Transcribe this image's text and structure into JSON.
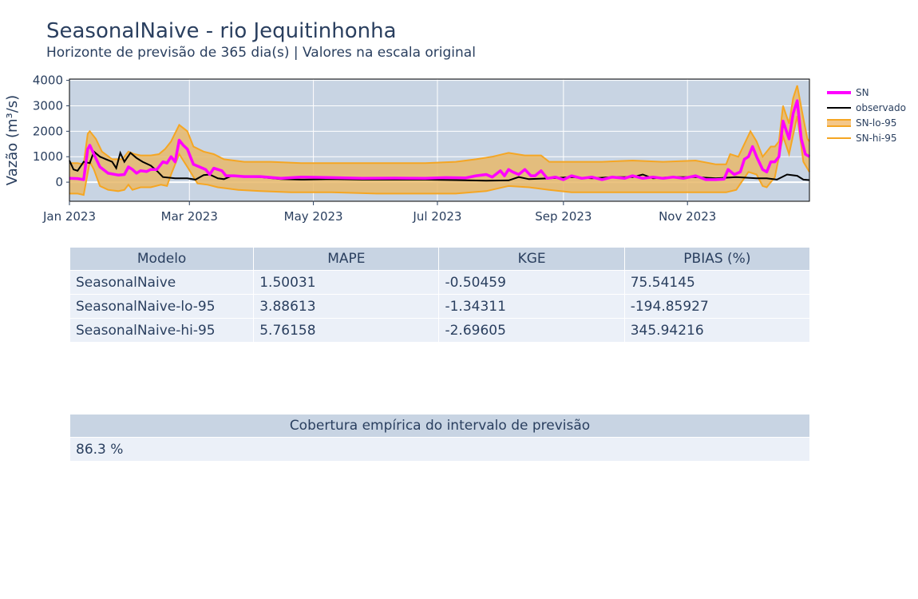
{
  "title": "SeasonalNaive - rio Jequitinhonha",
  "subtitle": "Horizonte de previsão de 365 dia(s) | Valores na escala original",
  "colors": {
    "sn": "#ff00ff",
    "observado": "#000000",
    "band": "#f5a623",
    "band_fill": "#e8b96b",
    "plot_bg": "#c8d4e3"
  },
  "chart_data": {
    "type": "line",
    "title": "SeasonalNaive - rio Jequitinhonha",
    "xlabel": "",
    "ylabel": "Vazão (m³/s)",
    "x_range": [
      "2023-01-01",
      "2023-12-31"
    ],
    "ylim": [
      -750,
      4050
    ],
    "y_ticks": [
      0,
      1000,
      2000,
      3000,
      4000
    ],
    "x_ticks": [
      {
        "date": "2023-01-01",
        "label": "Jan 2023"
      },
      {
        "date": "2023-03-01",
        "label": "Mar 2023"
      },
      {
        "date": "2023-05-01",
        "label": "May 2023"
      },
      {
        "date": "2023-07-01",
        "label": "Jul 2023"
      },
      {
        "date": "2023-09-01",
        "label": "Sep 2023"
      },
      {
        "date": "2023-11-01",
        "label": "Nov 2023"
      }
    ],
    "grid": true,
    "legend_position": "right",
    "series": [
      {
        "name": "SN",
        "points": [
          [
            "2023-01-01",
            150
          ],
          [
            "2023-01-05",
            140
          ],
          [
            "2023-01-08",
            100
          ],
          [
            "2023-01-10",
            1300
          ],
          [
            "2023-01-11",
            1450
          ],
          [
            "2023-01-13",
            1100
          ],
          [
            "2023-01-16",
            600
          ],
          [
            "2023-01-20",
            350
          ],
          [
            "2023-01-25",
            280
          ],
          [
            "2023-01-28",
            300
          ],
          [
            "2023-01-30",
            600
          ],
          [
            "2023-02-01",
            500
          ],
          [
            "2023-02-03",
            350
          ],
          [
            "2023-02-05",
            450
          ],
          [
            "2023-02-08",
            420
          ],
          [
            "2023-02-10",
            500
          ],
          [
            "2023-02-13",
            500
          ],
          [
            "2023-02-16",
            800
          ],
          [
            "2023-02-18",
            750
          ],
          [
            "2023-02-20",
            1000
          ],
          [
            "2023-02-22",
            800
          ],
          [
            "2023-02-24",
            1650
          ],
          [
            "2023-02-26",
            1450
          ],
          [
            "2023-02-28",
            1300
          ],
          [
            "2023-03-03",
            700
          ],
          [
            "2023-03-06",
            600
          ],
          [
            "2023-03-09",
            500
          ],
          [
            "2023-03-11",
            300
          ],
          [
            "2023-03-13",
            550
          ],
          [
            "2023-03-17",
            450
          ],
          [
            "2023-03-19",
            250
          ],
          [
            "2023-03-23",
            250
          ],
          [
            "2023-03-28",
            220
          ],
          [
            "2023-04-05",
            220
          ],
          [
            "2023-04-15",
            150
          ],
          [
            "2023-04-25",
            200
          ],
          [
            "2023-05-10",
            180
          ],
          [
            "2023-05-25",
            150
          ],
          [
            "2023-06-10",
            160
          ],
          [
            "2023-06-25",
            150
          ],
          [
            "2023-07-05",
            180
          ],
          [
            "2023-07-15",
            170
          ],
          [
            "2023-07-20",
            250
          ],
          [
            "2023-07-25",
            300
          ],
          [
            "2023-07-28",
            200
          ],
          [
            "2023-08-01",
            450
          ],
          [
            "2023-08-03",
            250
          ],
          [
            "2023-08-05",
            500
          ],
          [
            "2023-08-07",
            400
          ],
          [
            "2023-08-10",
            300
          ],
          [
            "2023-08-13",
            500
          ],
          [
            "2023-08-16",
            250
          ],
          [
            "2023-08-18",
            250
          ],
          [
            "2023-08-21",
            450
          ],
          [
            "2023-08-24",
            150
          ],
          [
            "2023-08-28",
            200
          ],
          [
            "2023-09-01",
            100
          ],
          [
            "2023-09-05",
            250
          ],
          [
            "2023-09-10",
            150
          ],
          [
            "2023-09-15",
            200
          ],
          [
            "2023-09-20",
            100
          ],
          [
            "2023-09-25",
            200
          ],
          [
            "2023-10-01",
            150
          ],
          [
            "2023-10-05",
            250
          ],
          [
            "2023-10-10",
            150
          ],
          [
            "2023-10-15",
            200
          ],
          [
            "2023-10-20",
            150
          ],
          [
            "2023-10-25",
            200
          ],
          [
            "2023-10-30",
            150
          ],
          [
            "2023-11-05",
            250
          ],
          [
            "2023-11-10",
            100
          ],
          [
            "2023-11-15",
            100
          ],
          [
            "2023-11-19",
            120
          ],
          [
            "2023-11-21",
            500
          ],
          [
            "2023-11-24",
            300
          ],
          [
            "2023-11-27",
            400
          ],
          [
            "2023-11-29",
            900
          ],
          [
            "2023-12-01",
            1000
          ],
          [
            "2023-12-03",
            1400
          ],
          [
            "2023-12-05",
            1000
          ],
          [
            "2023-12-08",
            500
          ],
          [
            "2023-12-10",
            400
          ],
          [
            "2023-12-12",
            800
          ],
          [
            "2023-12-14",
            800
          ],
          [
            "2023-12-16",
            1000
          ],
          [
            "2023-12-18",
            2400
          ],
          [
            "2023-12-21",
            1700
          ],
          [
            "2023-12-23",
            2700
          ],
          [
            "2023-12-25",
            3200
          ],
          [
            "2023-12-27",
            1700
          ],
          [
            "2023-12-29",
            1100
          ],
          [
            "2023-12-31",
            1000
          ]
        ]
      },
      {
        "name": "observado",
        "points": [
          [
            "2023-01-01",
            850
          ],
          [
            "2023-01-03",
            500
          ],
          [
            "2023-01-05",
            450
          ],
          [
            "2023-01-08",
            800
          ],
          [
            "2023-01-11",
            750
          ],
          [
            "2023-01-13",
            1200
          ],
          [
            "2023-01-16",
            1000
          ],
          [
            "2023-01-19",
            900
          ],
          [
            "2023-01-22",
            800
          ],
          [
            "2023-01-24",
            550
          ],
          [
            "2023-01-26",
            1150
          ],
          [
            "2023-01-28",
            800
          ],
          [
            "2023-01-31",
            1150
          ],
          [
            "2023-02-03",
            950
          ],
          [
            "2023-02-06",
            800
          ],
          [
            "2023-02-10",
            650
          ],
          [
            "2023-02-13",
            450
          ],
          [
            "2023-02-16",
            200
          ],
          [
            "2023-02-22",
            150
          ],
          [
            "2023-02-28",
            150
          ],
          [
            "2023-03-04",
            100
          ],
          [
            "2023-03-08",
            280
          ],
          [
            "2023-03-11",
            300
          ],
          [
            "2023-03-15",
            150
          ],
          [
            "2023-03-18",
            120
          ],
          [
            "2023-03-22",
            250
          ],
          [
            "2023-03-28",
            220
          ],
          [
            "2023-04-05",
            200
          ],
          [
            "2023-04-15",
            120
          ],
          [
            "2023-04-25",
            100
          ],
          [
            "2023-05-10",
            120
          ],
          [
            "2023-05-25",
            100
          ],
          [
            "2023-06-10",
            100
          ],
          [
            "2023-06-25",
            100
          ],
          [
            "2023-07-10",
            80
          ],
          [
            "2023-07-25",
            60
          ],
          [
            "2023-08-05",
            70
          ],
          [
            "2023-08-10",
            200
          ],
          [
            "2023-08-15",
            120
          ],
          [
            "2023-08-25",
            150
          ],
          [
            "2023-09-05",
            200
          ],
          [
            "2023-09-15",
            150
          ],
          [
            "2023-09-25",
            200
          ],
          [
            "2023-10-05",
            200
          ],
          [
            "2023-10-10",
            300
          ],
          [
            "2023-10-15",
            150
          ],
          [
            "2023-10-25",
            200
          ],
          [
            "2023-11-05",
            200
          ],
          [
            "2023-11-15",
            150
          ],
          [
            "2023-11-25",
            200
          ],
          [
            "2023-12-05",
            150
          ],
          [
            "2023-12-10",
            150
          ],
          [
            "2023-12-15",
            100
          ],
          [
            "2023-12-20",
            300
          ],
          [
            "2023-12-25",
            250
          ],
          [
            "2023-12-28",
            100
          ],
          [
            "2023-12-31",
            80
          ]
        ]
      },
      {
        "name": "SN-lo-95",
        "points": [
          [
            "2023-01-01",
            -450
          ],
          [
            "2023-01-05",
            -450
          ],
          [
            "2023-01-08",
            -500
          ],
          [
            "2023-01-11",
            800
          ],
          [
            "2023-01-13",
            500
          ],
          [
            "2023-01-16",
            -150
          ],
          [
            "2023-01-20",
            -300
          ],
          [
            "2023-01-25",
            -350
          ],
          [
            "2023-01-28",
            -300
          ],
          [
            "2023-01-30",
            -100
          ],
          [
            "2023-02-01",
            -300
          ],
          [
            "2023-02-05",
            -200
          ],
          [
            "2023-02-10",
            -200
          ],
          [
            "2023-02-15",
            -100
          ],
          [
            "2023-02-18",
            -150
          ],
          [
            "2023-02-20",
            300
          ],
          [
            "2023-02-24",
            1100
          ],
          [
            "2023-02-28",
            600
          ],
          [
            "2023-03-05",
            -50
          ],
          [
            "2023-03-10",
            -100
          ],
          [
            "2023-03-15",
            -200
          ],
          [
            "2023-03-25",
            -300
          ],
          [
            "2023-04-05",
            -350
          ],
          [
            "2023-04-20",
            -400
          ],
          [
            "2023-05-10",
            -400
          ],
          [
            "2023-06-01",
            -450
          ],
          [
            "2023-06-20",
            -450
          ],
          [
            "2023-07-10",
            -450
          ],
          [
            "2023-07-25",
            -350
          ],
          [
            "2023-08-05",
            -150
          ],
          [
            "2023-08-15",
            -200
          ],
          [
            "2023-08-25",
            -300
          ],
          [
            "2023-09-05",
            -400
          ],
          [
            "2023-09-20",
            -400
          ],
          [
            "2023-10-05",
            -400
          ],
          [
            "2023-10-20",
            -400
          ],
          [
            "2023-11-05",
            -400
          ],
          [
            "2023-11-20",
            -400
          ],
          [
            "2023-11-25",
            -300
          ],
          [
            "2023-12-01",
            400
          ],
          [
            "2023-12-05",
            300
          ],
          [
            "2023-12-08",
            -150
          ],
          [
            "2023-12-10",
            -200
          ],
          [
            "2023-12-14",
            200
          ],
          [
            "2023-12-18",
            1800
          ],
          [
            "2023-12-21",
            1100
          ],
          [
            "2023-12-25",
            2600
          ],
          [
            "2023-12-28",
            800
          ],
          [
            "2023-12-31",
            400
          ]
        ]
      },
      {
        "name": "SN-hi-95",
        "points": [
          [
            "2023-01-01",
            750
          ],
          [
            "2023-01-05",
            750
          ],
          [
            "2023-01-08",
            700
          ],
          [
            "2023-01-10",
            1900
          ],
          [
            "2023-01-11",
            2000
          ],
          [
            "2023-01-14",
            1700
          ],
          [
            "2023-01-17",
            1200
          ],
          [
            "2023-01-22",
            900
          ],
          [
            "2023-01-27",
            900
          ],
          [
            "2023-01-30",
            1200
          ],
          [
            "2023-02-02",
            1100
          ],
          [
            "2023-02-05",
            1050
          ],
          [
            "2023-02-10",
            1050
          ],
          [
            "2023-02-14",
            1100
          ],
          [
            "2023-02-17",
            1300
          ],
          [
            "2023-02-20",
            1600
          ],
          [
            "2023-02-24",
            2250
          ],
          [
            "2023-02-28",
            2000
          ],
          [
            "2023-03-03",
            1400
          ],
          [
            "2023-03-08",
            1200
          ],
          [
            "2023-03-13",
            1100
          ],
          [
            "2023-03-18",
            900
          ],
          [
            "2023-03-28",
            800
          ],
          [
            "2023-04-10",
            800
          ],
          [
            "2023-04-25",
            750
          ],
          [
            "2023-05-15",
            750
          ],
          [
            "2023-06-10",
            750
          ],
          [
            "2023-06-25",
            750
          ],
          [
            "2023-07-10",
            800
          ],
          [
            "2023-07-20",
            900
          ],
          [
            "2023-07-28",
            1000
          ],
          [
            "2023-08-05",
            1150
          ],
          [
            "2023-08-13",
            1050
          ],
          [
            "2023-08-21",
            1050
          ],
          [
            "2023-08-25",
            800
          ],
          [
            "2023-09-05",
            800
          ],
          [
            "2023-09-20",
            800
          ],
          [
            "2023-10-05",
            850
          ],
          [
            "2023-10-20",
            800
          ],
          [
            "2023-11-05",
            850
          ],
          [
            "2023-11-15",
            700
          ],
          [
            "2023-11-20",
            700
          ],
          [
            "2023-11-22",
            1100
          ],
          [
            "2023-11-26",
            1000
          ],
          [
            "2023-11-29",
            1500
          ],
          [
            "2023-12-02",
            2000
          ],
          [
            "2023-12-05",
            1600
          ],
          [
            "2023-12-08",
            1000
          ],
          [
            "2023-12-12",
            1400
          ],
          [
            "2023-12-14",
            1400
          ],
          [
            "2023-12-16",
            1600
          ],
          [
            "2023-12-18",
            3000
          ],
          [
            "2023-12-21",
            2300
          ],
          [
            "2023-12-23",
            3300
          ],
          [
            "2023-12-25",
            3800
          ],
          [
            "2023-12-28",
            2500
          ],
          [
            "2023-12-30",
            1700
          ],
          [
            "2023-12-31",
            1600
          ]
        ]
      }
    ]
  },
  "legend": [
    {
      "name": "SN",
      "style": "line",
      "color": "#ff00ff"
    },
    {
      "name": "observado",
      "style": "line",
      "color": "#000000"
    },
    {
      "name": "SN-lo-95",
      "style": "fill",
      "color": "#f5a623"
    },
    {
      "name": "SN-hi-95",
      "style": "line",
      "color": "#f5a623"
    }
  ],
  "metrics_table": {
    "headers": [
      "Modelo",
      "MAPE",
      "KGE",
      "PBIAS (%)"
    ],
    "rows": [
      [
        "SeasonalNaive",
        "1.50031",
        "-0.50459",
        "75.54145"
      ],
      [
        "SeasonalNaive-lo-95",
        "3.88613",
        "-1.34311",
        "-194.85927"
      ],
      [
        "SeasonalNaive-hi-95",
        "5.76158",
        "-2.69605",
        "345.94216"
      ]
    ]
  },
  "coverage_table": {
    "header": "Cobertura empírica do intervalo de previsão",
    "value": "86.3 %"
  }
}
